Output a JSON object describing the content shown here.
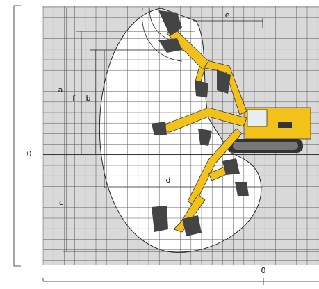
{
  "dimension_labels": {
    "a": "a",
    "f": "f",
    "b": "b",
    "c": "c",
    "d": "d",
    "e": "e"
  },
  "origin_labels": {
    "left": "0",
    "bottom": "0"
  }
}
